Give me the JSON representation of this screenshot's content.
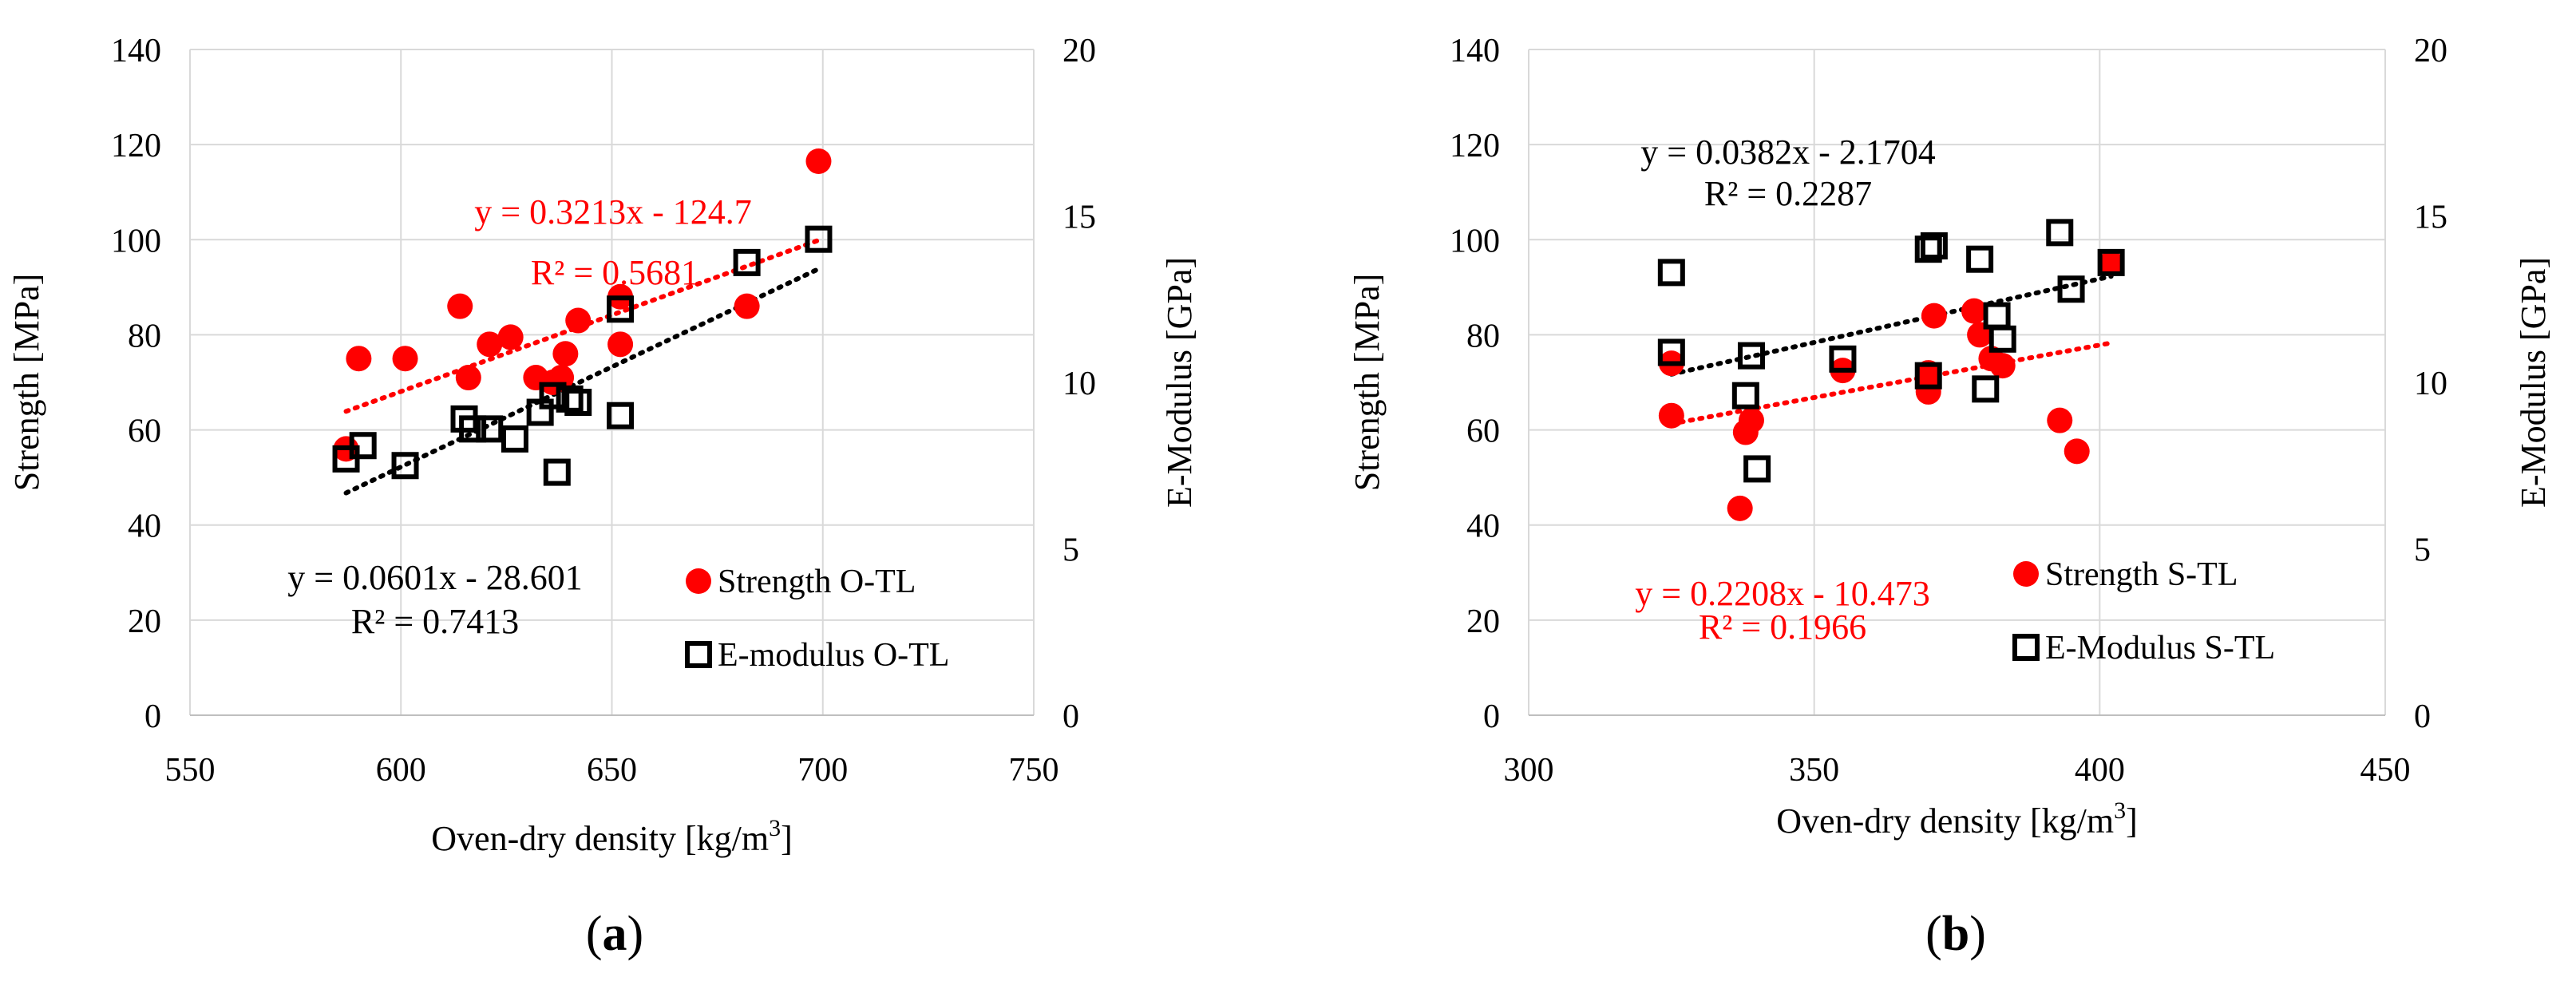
{
  "colors": {
    "strength": "#ff0000",
    "emodulus": "#000000",
    "grid": "#d9d9d9",
    "axis": "#bfbfbf"
  },
  "chart_data": [
    {
      "type": "scatter",
      "panel_label": "a",
      "xlabel": "Oven-dry density [kg/m3]",
      "xlabel_main": "Oven-dry density [kg/m",
      "xlabel_sup": "3",
      "xlabel_end": "]",
      "ylabel": "Strength [MPa]",
      "y2label": "E-Modulus [GPa]",
      "xlim": [
        550,
        750
      ],
      "xticks": [
        "550",
        "600",
        "650",
        "700",
        "750"
      ],
      "ylim": [
        0,
        140
      ],
      "yticks": [
        "0",
        "20",
        "40",
        "60",
        "80",
        "100",
        "120",
        "140"
      ],
      "y2lim": [
        0,
        20
      ],
      "y2ticks": [
        "0",
        "5",
        "10",
        "15",
        "20"
      ],
      "legend": [
        "Strength O-TL",
        "E-modulus O-TL"
      ],
      "legend_position": "bottom-right",
      "series": [
        {
          "name": "Strength O-TL",
          "axis": "left",
          "marker": "filled-circle",
          "x": [
            587,
            590,
            601,
            614,
            616,
            621,
            626,
            632,
            636,
            638,
            639,
            642,
            652,
            652,
            682,
            699
          ],
          "y": [
            56,
            75,
            75,
            86,
            71,
            78,
            79.5,
            71,
            70,
            71,
            76,
            83,
            88,
            78,
            86,
            116.5
          ]
        },
        {
          "name": "E-modulus O-TL",
          "axis": "right",
          "marker": "open-square",
          "x": [
            587,
            591,
            601,
            615,
            617,
            621,
            627,
            633,
            636,
            637,
            640,
            642,
            652,
            652,
            682,
            699
          ],
          "y": [
            7.7,
            8.1,
            7.5,
            8.9,
            8.6,
            8.6,
            8.3,
            9.1,
            9.6,
            7.3,
            9.5,
            9.4,
            9.0,
            12.2,
            13.6,
            14.3
          ]
        }
      ],
      "trendlines": [
        {
          "series": "Strength O-TL",
          "axis": "left",
          "slope": 0.3213,
          "intercept": -124.7,
          "x_range": [
            587,
            699
          ],
          "equation": "y = 0.3213x - 124.7",
          "r2": "R² = 0.5681"
        },
        {
          "series": "E-modulus O-TL",
          "axis": "right",
          "slope": 0.0601,
          "intercept": -28.601,
          "x_range": [
            587,
            699
          ],
          "equation": "y = 0.0601x - 28.601",
          "r2": "R² = 0.7413"
        }
      ]
    },
    {
      "type": "scatter",
      "panel_label": "b",
      "xlabel": "Oven-dry density [kg/m3]",
      "xlabel_main": "Oven-dry density [kg/m",
      "xlabel_sup": "3",
      "xlabel_end": "]",
      "ylabel": "Strength [MPa]",
      "y2label": "E-Modulus [GPa]",
      "xlim": [
        300,
        450
      ],
      "xticks": [
        "300",
        "350",
        "400",
        "450"
      ],
      "ylim": [
        0,
        140
      ],
      "yticks": [
        "0",
        "20",
        "40",
        "60",
        "80",
        "100",
        "120",
        "140"
      ],
      "y2lim": [
        0,
        20
      ],
      "y2ticks": [
        "0",
        "5",
        "10",
        "15",
        "20"
      ],
      "legend": [
        "Strength S-TL",
        "E-Modulus S-TL"
      ],
      "legend_position": "bottom-right",
      "series": [
        {
          "name": "Strength S-TL",
          "axis": "left",
          "marker": "filled-circle",
          "x": [
            325,
            325,
            337,
            338,
            339,
            355,
            370,
            370,
            370,
            371,
            378,
            379,
            381,
            383,
            393,
            396,
            402
          ],
          "y": [
            74,
            63,
            43.5,
            59.5,
            62,
            72.5,
            71.5,
            68,
            72,
            84,
            85,
            80,
            75,
            73.5,
            62,
            55.5,
            95
          ]
        },
        {
          "name": "E-Modulus S-TL",
          "axis": "right",
          "marker": "open-square",
          "x": [
            325,
            325,
            338,
            339,
            340,
            355,
            370,
            370,
            371,
            379,
            380,
            382,
            383,
            393,
            395,
            402
          ],
          "y": [
            13.3,
            10.9,
            9.6,
            10.8,
            7.4,
            10.7,
            14.0,
            10.2,
            14.1,
            13.7,
            9.8,
            12.0,
            11.3,
            14.5,
            12.8,
            13.6
          ]
        }
      ],
      "trendlines": [
        {
          "series": "Strength S-TL",
          "axis": "left",
          "slope": 0.2208,
          "intercept": -10.473,
          "x_range": [
            325,
            402
          ],
          "equation": "y = 0.2208x - 10.473",
          "r2": "R² = 0.1966"
        },
        {
          "series": "E-Modulus S-TL",
          "axis": "right",
          "slope": 0.0382,
          "intercept": -2.1704,
          "x_range": [
            325,
            402
          ],
          "equation": "y = 0.0382x - 2.1704",
          "r2": "R² = 0.2287"
        }
      ]
    }
  ]
}
